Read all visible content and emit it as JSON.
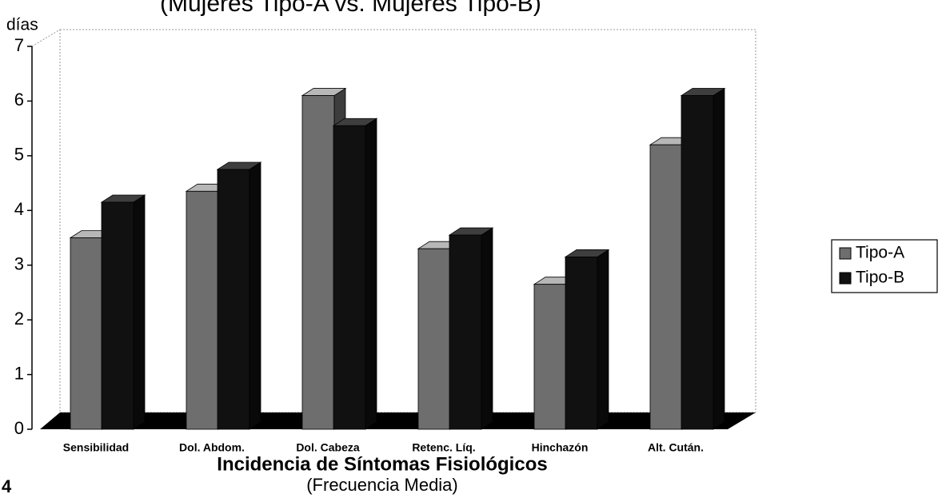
{
  "chart_data": {
    "type": "bar3d",
    "title": "(Mujeres Tipo-A vs. Mujeres Tipo-B)",
    "y_axis_label": "días",
    "x_axis_label": "Incidencia de Síntomas Fisiológicos",
    "subtitle": "(Frecuencia Media)",
    "page_label": "4",
    "categories": [
      "Sensibilidad",
      "Dol. Abdom.",
      "Dol. Cabeza",
      "Retenc. Líq.",
      "Hinchazón",
      "Alt. Cután."
    ],
    "series": [
      {
        "name": "Tipo-A",
        "color": "#6e6e6e",
        "values": [
          3.5,
          4.35,
          6.1,
          3.3,
          2.65,
          5.2
        ]
      },
      {
        "name": "Tipo-B",
        "color": "#111111",
        "values": [
          4.15,
          4.75,
          5.55,
          3.55,
          3.15,
          6.1
        ]
      }
    ],
    "ylim": [
      0,
      7
    ],
    "yticks": [
      0,
      1,
      2,
      3,
      4,
      5,
      6,
      7
    ],
    "legend": "right"
  }
}
